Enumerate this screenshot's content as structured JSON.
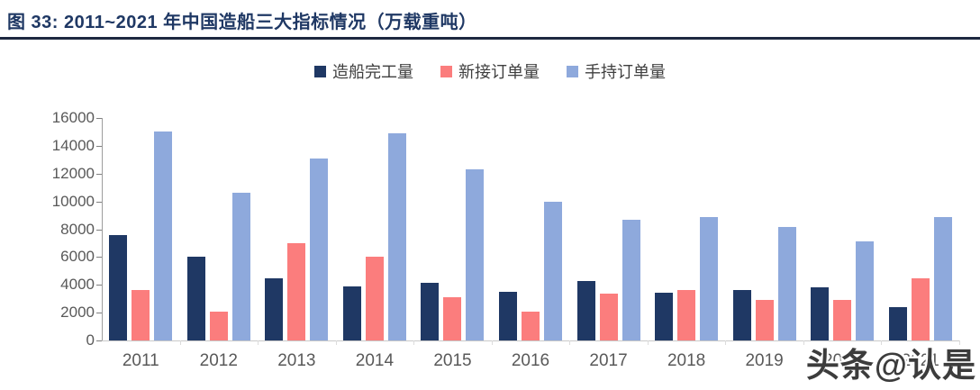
{
  "header": {
    "title": "图 33:  2011~2021 年中国造船三大指标情况（万载重吨）"
  },
  "watermark": {
    "text": "头条@认是"
  },
  "colors": {
    "title_navy": "#1F3864",
    "divider": "#1d2840",
    "axis_text": "#595959",
    "legend_text": "#3f3f3f"
  },
  "chart_data": {
    "type": "bar",
    "title": "2011~2021 年中国造船三大指标情况（万载重吨）",
    "categories": [
      "2011",
      "2012",
      "2013",
      "2014",
      "2015",
      "2016",
      "2017",
      "2018",
      "2019",
      "2020",
      "2021"
    ],
    "series": [
      {
        "name": "造船完工量",
        "color": "#1F3864",
        "values": [
          7600,
          6000,
          4500,
          3900,
          4150,
          3500,
          4250,
          3450,
          3650,
          3850,
          2400
        ]
      },
      {
        "name": "新接订单量",
        "color": "#FB7D7D",
        "values": [
          3600,
          2050,
          7000,
          6000,
          3100,
          2100,
          3350,
          3650,
          2900,
          2900,
          4500
        ]
      },
      {
        "name": "手持订单量",
        "color": "#8EA9DC",
        "values": [
          15000,
          10650,
          13100,
          14900,
          12300,
          9950,
          8700,
          8900,
          8150,
          7100,
          8900
        ]
      }
    ],
    "xlabel": "",
    "ylabel": "",
    "ylim": [
      0,
      16000
    ],
    "yticks": [
      0,
      2000,
      4000,
      6000,
      8000,
      10000,
      12000,
      14000,
      16000
    ],
    "grid": false,
    "legend_position": "top-center"
  }
}
